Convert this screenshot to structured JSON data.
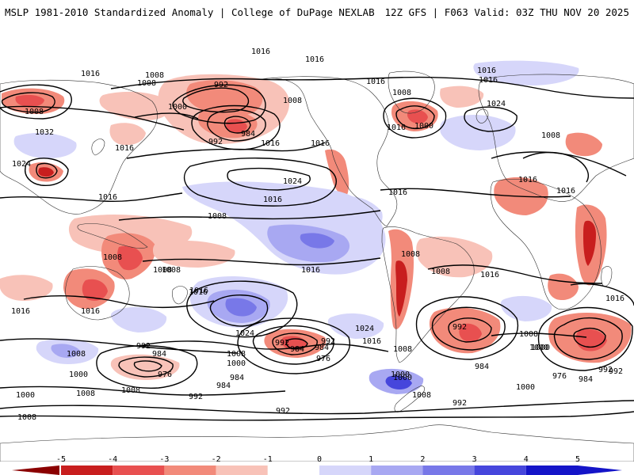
{
  "title_left": "MSLP 1981-2010 Standardized Anomaly | College of DuPage NEXLAB",
  "title_right": "12Z GFS | F063 Valid: 03Z THU NOV 20 2025",
  "colorbar": {
    "ticks": [
      "-5",
      "-4",
      "-3",
      "-2",
      "-1",
      "0",
      "1",
      "2",
      "3",
      "4",
      "5"
    ],
    "colors": [
      "#8b0000",
      "#c81e1e",
      "#e85050",
      "#f28a7a",
      "#f8c2b8",
      "#ffffff",
      "#d6d6fa",
      "#a8a8f2",
      "#7878e8",
      "#4646dc",
      "#1414c8"
    ]
  },
  "isobar_labels": [
    "1016",
    "1016",
    "1016",
    "1008",
    "992",
    "1000",
    "1008",
    "1016",
    "1016",
    "1016",
    "1000",
    "1008",
    "1024",
    "1016",
    "1008",
    "1008",
    "1016",
    "1032",
    "1024",
    "1016",
    "984",
    "992",
    "1016",
    "1024",
    "1016",
    "1016",
    "1016",
    "1016",
    "1008",
    "1008",
    "1008",
    "1008",
    "1016",
    "1016",
    "1024",
    "1008",
    "1016",
    "1016",
    "1016",
    "1016",
    "992",
    "984",
    "992",
    "1000",
    "1008",
    "976",
    "1000",
    "984",
    "1016",
    "1024",
    "992",
    "1008",
    "984",
    "1008",
    "984",
    "976",
    "992",
    "1000",
    "1008",
    "992",
    "1000",
    "1000",
    "1008",
    "992",
    "992",
    "984",
    "976",
    "1008",
    "1000",
    "984",
    "992",
    "1000",
    "1008",
    "1016",
    "1016",
    "1008",
    "1008",
    "1000",
    "992",
    "984",
    "1008"
  ]
}
